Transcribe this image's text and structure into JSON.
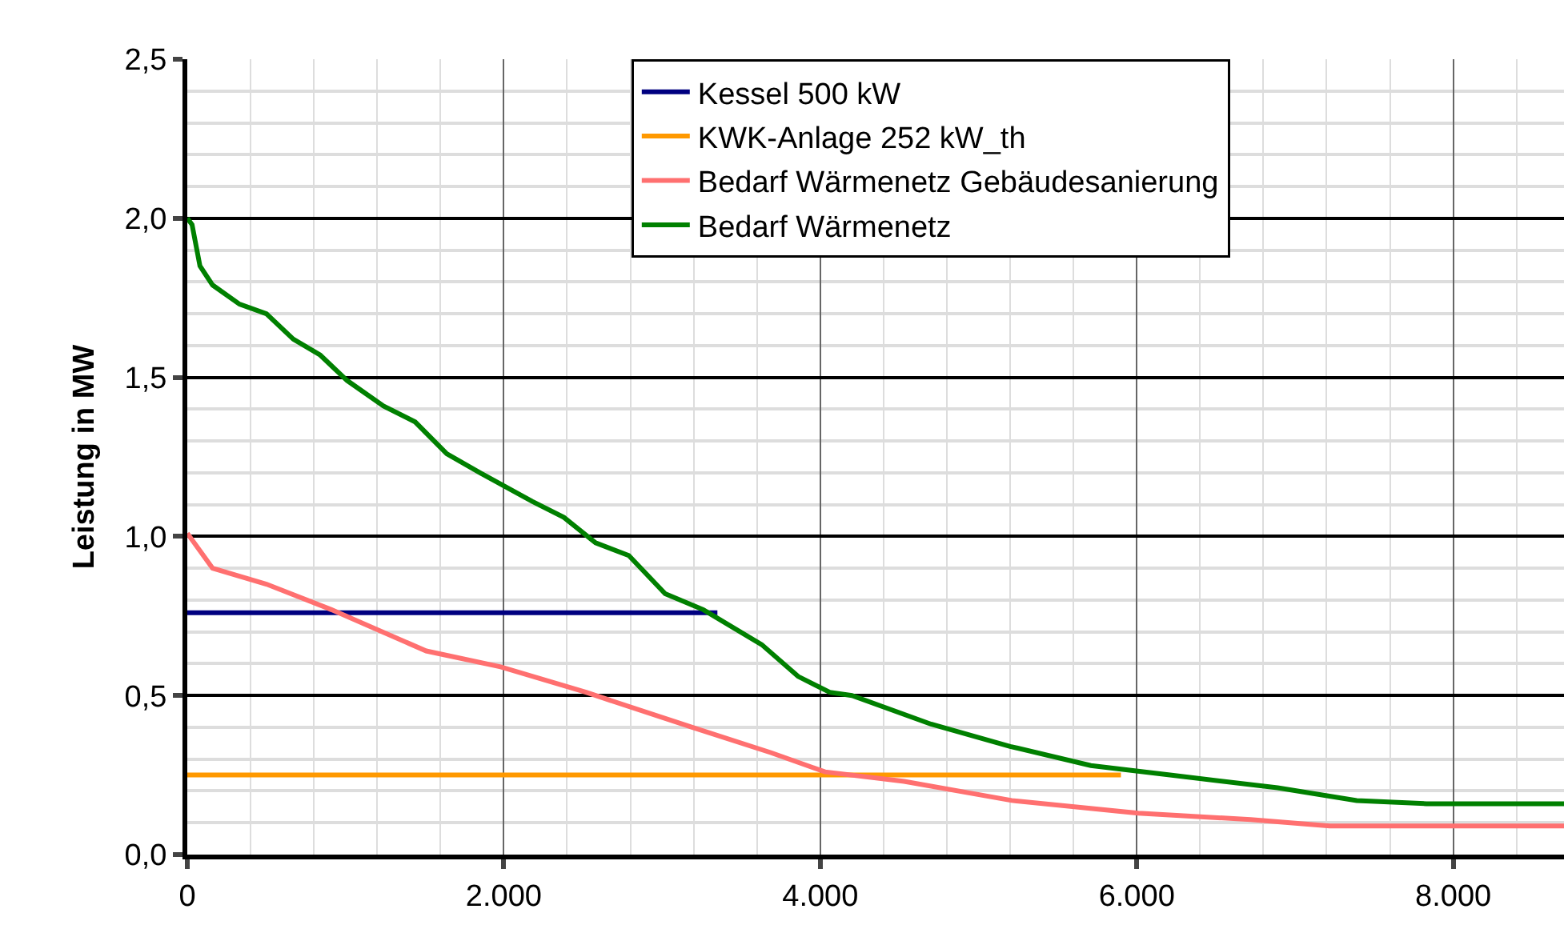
{
  "chart_data": {
    "type": "line",
    "ylabel": "Leistung in MW",
    "xlim": [
      0,
      8700
    ],
    "ylim": [
      0,
      2.5
    ],
    "xticks": [
      0,
      {
        "value": 2000,
        "label": "2.000"
      },
      {
        "value": 4000,
        "label": "4.000"
      },
      {
        "value": 6000,
        "label": "6.000"
      },
      {
        "value": 8000,
        "label": "8.000"
      }
    ],
    "yticks": [
      {
        "value": 0,
        "label": "0,0"
      },
      {
        "value": 0.5,
        "label": "0,5"
      },
      {
        "value": 1,
        "label": "1,0"
      },
      {
        "value": 1.5,
        "label": "1,5"
      },
      {
        "value": 2,
        "label": "2,0"
      },
      {
        "value": 2.5,
        "label": "2,5"
      }
    ],
    "grid": true,
    "legend": "top",
    "marker": "none",
    "line_style": "solid",
    "series": [
      {
        "name": "Kessel 500 kW",
        "color": "#000080",
        "x": [
          0,
          3350
        ],
        "values": [
          0.76,
          0.76
        ]
      },
      {
        "name": "KWK-Anlage 252 kW_th",
        "color": "#ff9900",
        "x": [
          0,
          5900
        ],
        "values": [
          0.25,
          0.25
        ]
      },
      {
        "name": "Bedarf Wärmenetz Gebäudesanierung",
        "color": "#ff7070",
        "x": [
          0,
          160,
          500,
          910,
          1510,
          1980,
          2520,
          3190,
          3690,
          4030,
          4530,
          5210,
          6010,
          6720,
          7220,
          8700
        ],
        "values": [
          1.01,
          0.9,
          0.85,
          0.77,
          0.64,
          0.59,
          0.51,
          0.4,
          0.32,
          0.26,
          0.23,
          0.17,
          0.13,
          0.11,
          0.09,
          0.09
        ]
      },
      {
        "name": "Bedarf Wärmenetz",
        "color": "#008000",
        "x": [
          0,
          30,
          80,
          160,
          330,
          500,
          670,
          840,
          1010,
          1240,
          1440,
          1640,
          1850,
          2180,
          2380,
          2580,
          2790,
          3020,
          3260,
          3630,
          3860,
          4060,
          4200,
          4700,
          5200,
          5710,
          6210,
          6890,
          7390,
          7830,
          8700
        ],
        "values": [
          2.0,
          1.98,
          1.85,
          1.79,
          1.73,
          1.7,
          1.62,
          1.57,
          1.49,
          1.41,
          1.36,
          1.26,
          1.2,
          1.11,
          1.06,
          0.98,
          0.94,
          0.82,
          0.77,
          0.66,
          0.56,
          0.51,
          0.5,
          0.41,
          0.34,
          0.28,
          0.25,
          0.21,
          0.17,
          0.16,
          0.16
        ]
      }
    ]
  }
}
